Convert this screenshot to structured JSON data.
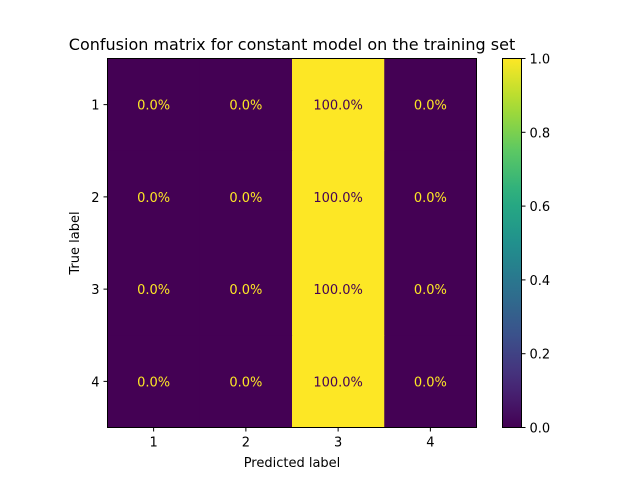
{
  "chart_data": {
    "type": "heatmap",
    "title": "Confusion matrix for constant model on the training set",
    "xlabel": "Predicted label",
    "ylabel": "True label",
    "x_categories": [
      "1",
      "2",
      "3",
      "4"
    ],
    "y_categories": [
      "1",
      "2",
      "3",
      "4"
    ],
    "values": [
      [
        0.0,
        0.0,
        1.0,
        0.0
      ],
      [
        0.0,
        0.0,
        1.0,
        0.0
      ],
      [
        0.0,
        0.0,
        1.0,
        0.0
      ],
      [
        0.0,
        0.0,
        1.0,
        0.0
      ]
    ],
    "cell_labels": [
      [
        "0.0%",
        "0.0%",
        "100.0%",
        "0.0%"
      ],
      [
        "0.0%",
        "0.0%",
        "100.0%",
        "0.0%"
      ],
      [
        "0.0%",
        "0.0%",
        "100.0%",
        "0.0%"
      ],
      [
        "0.0%",
        "0.0%",
        "100.0%",
        "0.0%"
      ]
    ],
    "colormap": "viridis",
    "colors": {
      "low": "#440154",
      "high": "#fde725"
    },
    "colorbar": {
      "range": [
        0.0,
        1.0
      ],
      "ticks": [
        "0.0",
        "0.2",
        "0.4",
        "0.6",
        "0.8",
        "1.0"
      ]
    },
    "grid": false
  }
}
